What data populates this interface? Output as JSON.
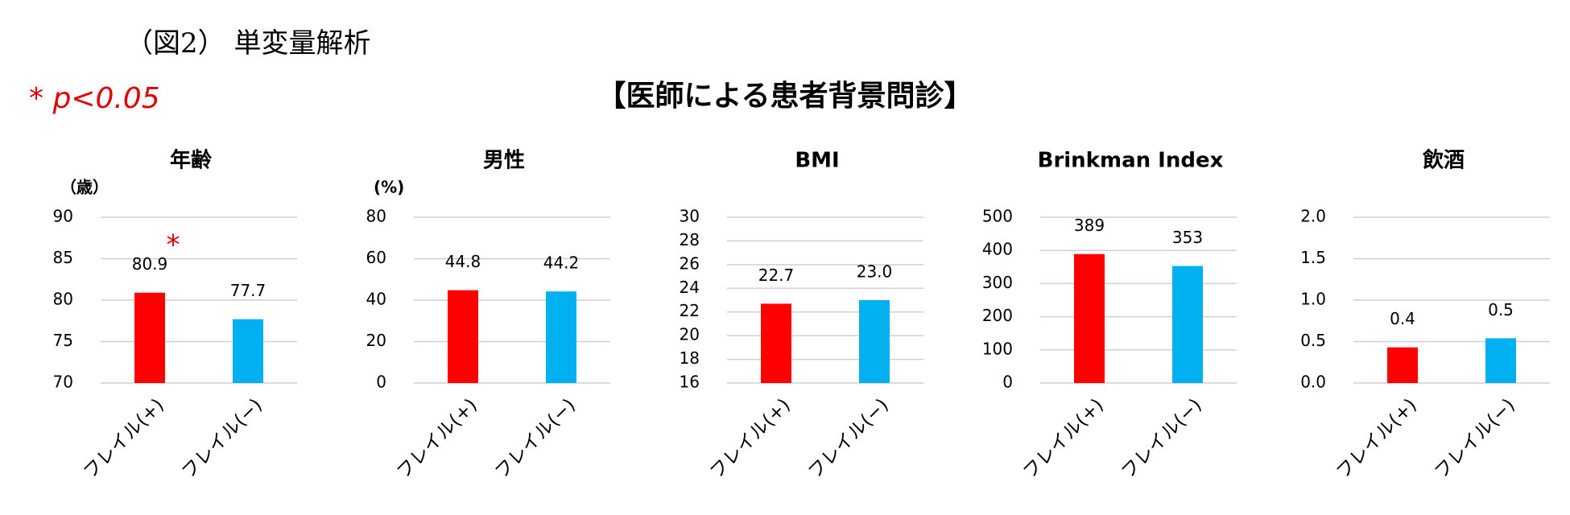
{
  "header": {
    "figure_label": "（図2） 単変量解析",
    "significance_note": "* p<0.05",
    "title": "【医師による患者背景問診】"
  },
  "chart_data": [
    {
      "type": "bar",
      "title": "年齢",
      "unit_label": "（歳）",
      "categories": [
        "フレイル(+)",
        "フレイル(−)"
      ],
      "values": [
        80.9,
        77.7
      ],
      "colors": [
        "#ff0000",
        "#00b0f0"
      ],
      "ylim": [
        70,
        90
      ],
      "yticks": [
        70,
        75,
        80,
        85,
        90
      ],
      "grid": true,
      "annotation": "*"
    },
    {
      "type": "bar",
      "title": "男性",
      "unit_label": "(%)",
      "categories": [
        "フレイル(+)",
        "フレイル(−)"
      ],
      "values": [
        44.8,
        44.2
      ],
      "colors": [
        "#ff0000",
        "#00b0f0"
      ],
      "ylim": [
        0,
        80
      ],
      "yticks": [
        0,
        20,
        40,
        60,
        80
      ],
      "grid": true
    },
    {
      "type": "bar",
      "title": "BMI",
      "categories": [
        "フレイル(+)",
        "フレイル(−)"
      ],
      "values": [
        22.7,
        23.0
      ],
      "value_labels": [
        "22.7",
        "23.0"
      ],
      "colors": [
        "#ff0000",
        "#00b0f0"
      ],
      "ylim": [
        16,
        30
      ],
      "yticks": [
        16,
        18,
        20,
        22,
        24,
        26,
        28,
        30
      ],
      "grid": true
    },
    {
      "type": "bar",
      "title": "Brinkman Index",
      "categories": [
        "フレイル(+)",
        "フレイル(−)"
      ],
      "values": [
        389,
        353
      ],
      "colors": [
        "#ff0000",
        "#00b0f0"
      ],
      "ylim": [
        0,
        500
      ],
      "yticks": [
        0,
        100,
        200,
        300,
        400,
        500
      ],
      "grid": true
    },
    {
      "type": "bar",
      "title": "飲酒",
      "categories": [
        "フレイル(+)",
        "フレイル(−)"
      ],
      "values": [
        0.43,
        0.54
      ],
      "value_labels": [
        "0.4",
        "0.5"
      ],
      "colors": [
        "#ff0000",
        "#00b0f0"
      ],
      "ylim": [
        0,
        2
      ],
      "yticks": [
        {
          "value": 0,
          "label": "0.0"
        },
        0.5,
        {
          "value": 1,
          "label": "1.0"
        },
        1.5,
        {
          "value": 2,
          "label": "2.0"
        }
      ],
      "grid": true
    }
  ]
}
